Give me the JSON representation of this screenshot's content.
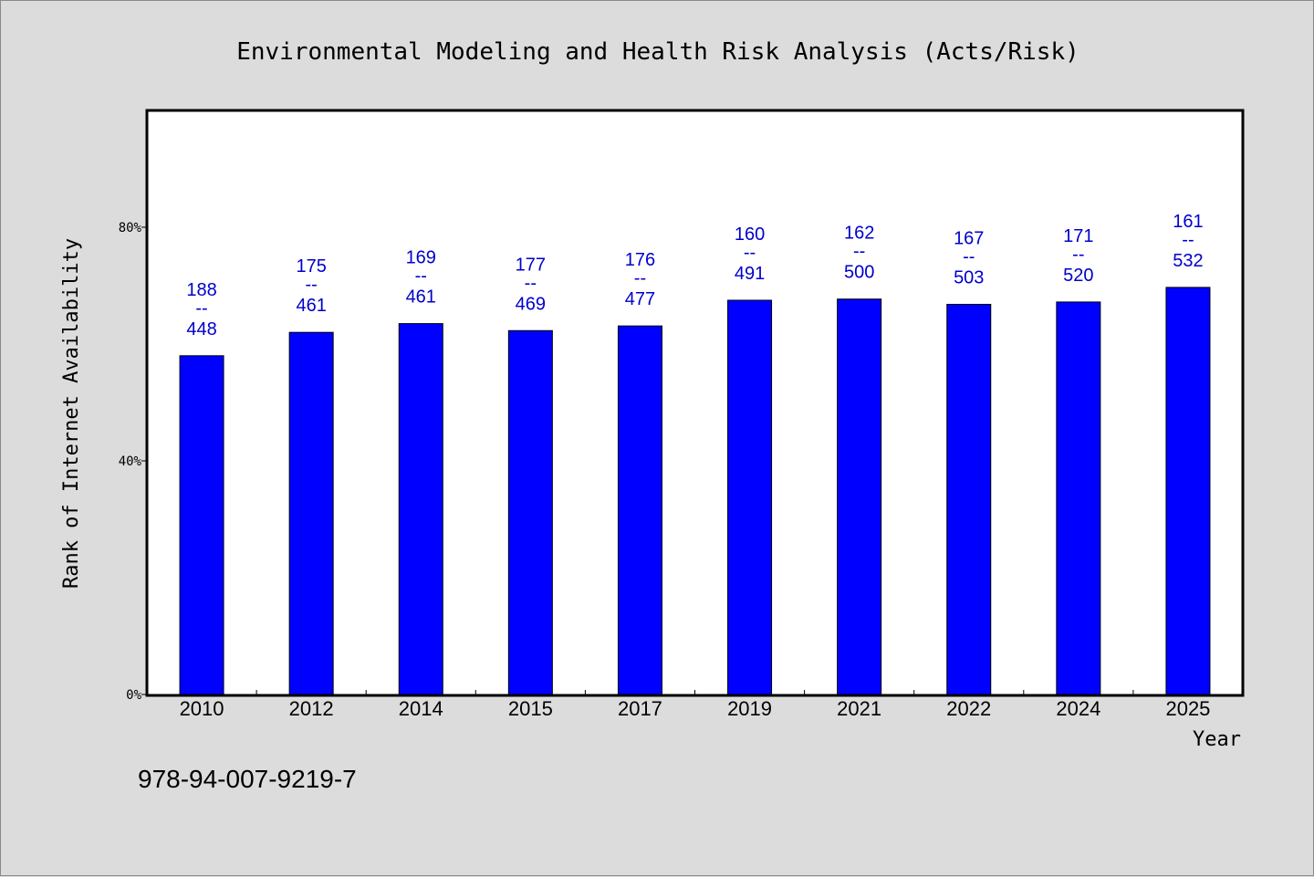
{
  "chart_data": {
    "type": "bar",
    "title": "Environmental Modeling and Health Risk Analysis (Acts/Risk)",
    "xlabel": "Year",
    "ylabel": "Rank of Internet Availability",
    "categories": [
      "2010",
      "2012",
      "2014",
      "2015",
      "2017",
      "2019",
      "2021",
      "2022",
      "2024",
      "2025"
    ],
    "values": [
      58,
      62,
      63.5,
      62.3,
      63.1,
      67.5,
      67.7,
      66.8,
      67.2,
      69.7
    ],
    "value_unit": "%",
    "labels_top": [
      "188",
      "175",
      "169",
      "177",
      "176",
      "160",
      "162",
      "167",
      "171",
      "161"
    ],
    "labels_bottom": [
      "448",
      "461",
      "461",
      "469",
      "477",
      "491",
      "500",
      "503",
      "520",
      "532"
    ],
    "label_separator": "--",
    "ylim": [
      0,
      100
    ],
    "yticks": [
      0,
      40,
      80
    ],
    "ytick_labels": [
      "0%",
      "40%",
      "80%"
    ],
    "bar_color": "#0000ff",
    "label_color": "#0000cc",
    "grid": false,
    "legend": "none"
  },
  "footer": {
    "isbn": "978-94-007-9219-7"
  }
}
